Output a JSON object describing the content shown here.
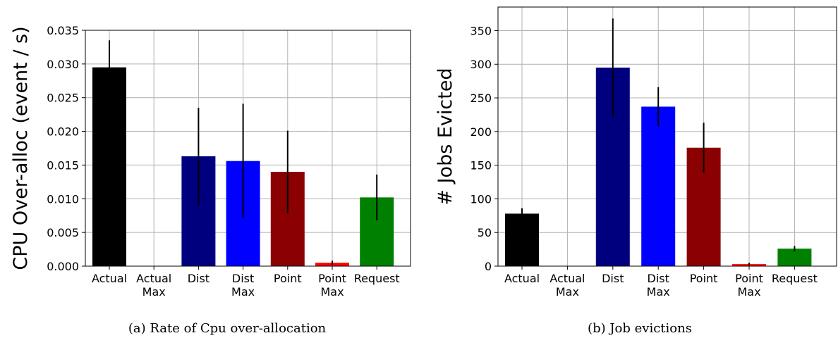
{
  "chart_data": [
    {
      "type": "bar",
      "categories": [
        [
          "Actual"
        ],
        [
          "Actual",
          "Max"
        ],
        [
          "Dist"
        ],
        [
          "Dist",
          "Max"
        ],
        [
          "Point"
        ],
        [
          "Point",
          "Max"
        ],
        [
          "Request"
        ]
      ],
      "values": [
        0.0295,
        0.0,
        0.0163,
        0.0156,
        0.014,
        0.0005,
        0.0102
      ],
      "errors": [
        0.004,
        0.0,
        0.0072,
        0.0085,
        0.0061,
        0.0003,
        0.0034
      ],
      "colors": [
        "#000000",
        "#000000",
        "#00007f",
        "#0000ff",
        "#8b0000",
        "#ff0000",
        "#008000"
      ],
      "ylabel": "CPU Over-alloc (event / s)",
      "xlabel": "",
      "ylim": [
        0,
        0.035
      ],
      "yticks": [
        0.0,
        0.005,
        0.01,
        0.015,
        0.02,
        0.025,
        0.03,
        0.035
      ],
      "ytick_labels": [
        "0.000",
        "0.005",
        "0.010",
        "0.015",
        "0.020",
        "0.025",
        "0.030",
        "0.035"
      ],
      "grid": true,
      "caption": "(a)  Rate of Cpu over-allocation"
    },
    {
      "type": "bar",
      "categories": [
        [
          "Actual"
        ],
        [
          "Actual",
          "Max"
        ],
        [
          "Dist"
        ],
        [
          "Dist",
          "Max"
        ],
        [
          "Point"
        ],
        [
          "Point",
          "Max"
        ],
        [
          "Request"
        ]
      ],
      "values": [
        78,
        0,
        295,
        237,
        176,
        3,
        26
      ],
      "errors": [
        8,
        0,
        73,
        29,
        37,
        2,
        4
      ],
      "colors": [
        "#000000",
        "#000000",
        "#00007f",
        "#0000ff",
        "#8b0000",
        "#ff0000",
        "#008000"
      ],
      "ylabel": "# Jobs Evicted",
      "xlabel": "",
      "ylim": [
        0,
        385
      ],
      "yticks": [
        0,
        50,
        100,
        150,
        200,
        250,
        300,
        350
      ],
      "ytick_labels": [
        "0",
        "50",
        "100",
        "150",
        "200",
        "250",
        "300",
        "350"
      ],
      "grid": true,
      "caption": "(b)  Job evictions"
    }
  ]
}
